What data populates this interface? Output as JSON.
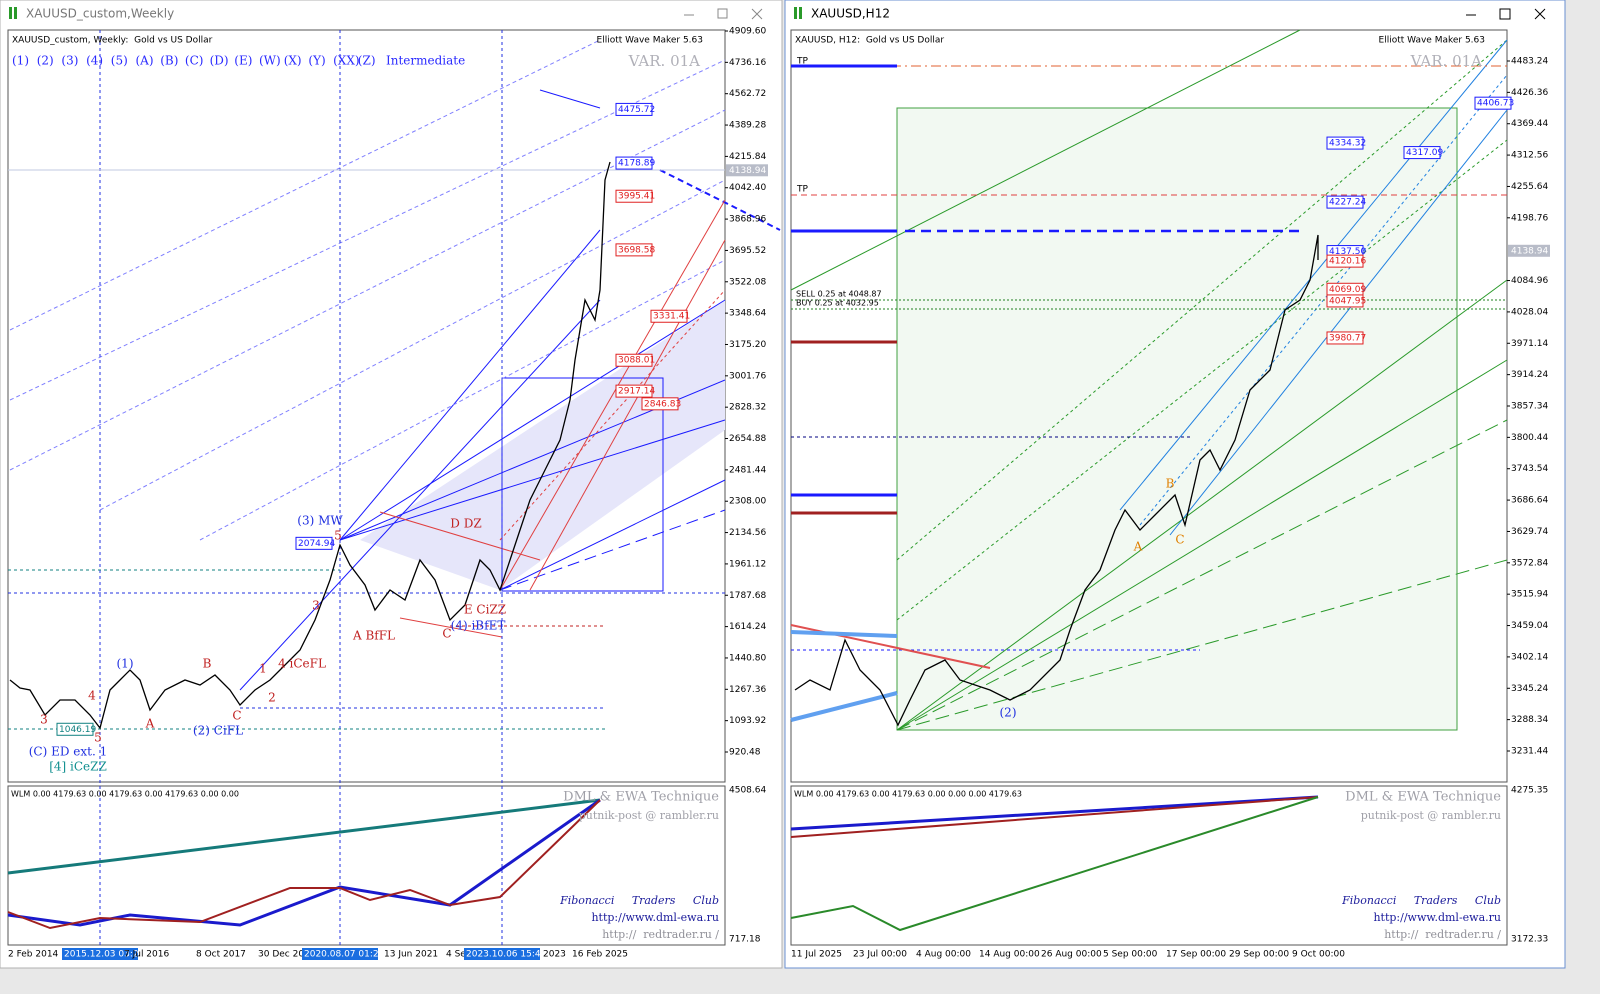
{
  "windows": [
    {
      "title": "XAUUSD_custom,Weekly",
      "chart_header": "XAUUSD_custom, Weekly:  Gold vs US Dollar",
      "indicator": "Elliott Wave Maker 5.63",
      "wave_buttons": [
        "(1)",
        "(2)",
        "(3)",
        "(4)",
        "(5)",
        "(A)",
        "(B)",
        "(C)",
        "(D)",
        "(E)",
        "(W)",
        "(X)",
        "(Y)",
        "(XX)",
        "(Z)"
      ],
      "degree": "Intermediate",
      "variant": "VAR. 01A",
      "price_axis": [
        "4909.60",
        "4736.16",
        "4562.72",
        "4389.28",
        "4215.84",
        "4042.40",
        "3868.96",
        "3695.52",
        "3522.08",
        "3348.64",
        "3175.20",
        "3001.76",
        "2828.32",
        "2654.88",
        "2481.44",
        "2308.00",
        "2134.56",
        "1961.12",
        "1787.68",
        "1614.24",
        "1440.80",
        "1267.36",
        "1093.92",
        "920.48"
      ],
      "current_price": "4138.94",
      "price_boxes": [
        {
          "text": "4475.72",
          "color": "#1a1aff"
        },
        {
          "text": "4178.89",
          "color": "#1a1aff"
        },
        {
          "text": "3995.41",
          "color": "#e02020"
        },
        {
          "text": "3698.58",
          "color": "#e02020"
        },
        {
          "text": "3331.41",
          "color": "#e02020"
        },
        {
          "text": "3088.01",
          "color": "#e02020"
        },
        {
          "text": "2917.14",
          "color": "#e02020"
        },
        {
          "text": "2846.83",
          "color": "#e02020"
        },
        {
          "text": "2074.94",
          "color": "#1a1aff"
        },
        {
          "text": "1046.19",
          "color": "#108080"
        }
      ],
      "annotations": [
        {
          "text": "(3) MW",
          "color": "#2030e0"
        },
        {
          "text": "(1)",
          "color": "#2030e0"
        },
        {
          "text": "(2) CiFL",
          "color": "#2030e0"
        },
        {
          "text": "(C) ED ext. 1",
          "color": "#2030e0"
        },
        {
          "text": "[4] iCeZZ",
          "color": "#108f8f"
        },
        {
          "text": "4 iCeFL",
          "color": "#c02020"
        },
        {
          "text": "A BfFL",
          "color": "#c02020"
        },
        {
          "text": "C",
          "color": "#c02020"
        },
        {
          "text": "D DZ",
          "color": "#c02020"
        },
        {
          "text": "E CiZZ",
          "color": "#c02020"
        },
        {
          "text": "(4) iBfET",
          "color": "#2030e0"
        },
        {
          "text": "B",
          "color": "#c02020"
        },
        {
          "text": "A",
          "color": "#c02020"
        },
        {
          "text": "C",
          "color": "#c02020"
        },
        {
          "text": "1",
          "color": "#c02020"
        },
        {
          "text": "2",
          "color": "#c02020"
        },
        {
          "text": "3",
          "color": "#c02020"
        },
        {
          "text": "4",
          "color": "#c02020"
        },
        {
          "text": "5",
          "color": "#c02020"
        },
        {
          "text": "3",
          "color": "#c02020"
        },
        {
          "text": "5",
          "color": "#c02020"
        }
      ],
      "date_axis": [
        {
          "text": "2 Feb 2014",
          "highlight": false
        },
        {
          "text": "2015.12.03 03:20",
          "highlight": true
        },
        {
          "text": "7 Jul 2016",
          "highlight": false
        },
        {
          "text": "8 Oct 2017",
          "highlight": false
        },
        {
          "text": "30 Dec 20",
          "highlight": false
        },
        {
          "text": "2020.08.07 01:21",
          "highlight": true
        },
        {
          "text": "13 Jun 2021",
          "highlight": false
        },
        {
          "text": "4 Se",
          "highlight": false
        },
        {
          "text": "2023.10.06 15:47",
          "highlight": true
        },
        {
          "text": "2023",
          "highlight": false
        },
        {
          "text": "16 Feb 2025",
          "highlight": false
        }
      ],
      "sub_header": "WLM 0.00 4179.63 0.00 4179.63 0.00 4179.63 0.00 0.00",
      "sub_axis": [
        "4508.64",
        "717.18"
      ],
      "credits": [
        "DML & EWA Technique",
        "putnik-post @ rambler.ru"
      ],
      "links": [
        "Fibonacci     Traders     Club",
        "http://www.dml-ewa.ru",
        "http://  redtrader.ru /"
      ]
    },
    {
      "title": "XAUUSD,H12",
      "chart_header": "XAUUSD, H12:  Gold vs US Dollar",
      "indicator": "Elliott Wave Maker 5.63",
      "variant": "VAR. 01A",
      "price_axis": [
        "4483.24",
        "4426.36",
        "4369.44",
        "4312.56",
        "4255.64",
        "4198.76",
        "4084.96",
        "4028.04",
        "3971.14",
        "3914.24",
        "3857.34",
        "3800.44",
        "3743.54",
        "3686.64",
        "3629.74",
        "3572.84",
        "3515.94",
        "3459.04",
        "3402.14",
        "3345.24",
        "3288.34",
        "3231.44"
      ],
      "current_price": "4138.94",
      "price_boxes": [
        {
          "text": "4406.73",
          "color": "#1a1aff"
        },
        {
          "text": "4334.32",
          "color": "#1a1aff"
        },
        {
          "text": "4317.09",
          "color": "#1a1aff"
        },
        {
          "text": "4227.24",
          "color": "#1a1aff"
        },
        {
          "text": "4137.50",
          "color": "#1a1aff"
        },
        {
          "text": "4120.16",
          "color": "#e02020"
        },
        {
          "text": "4069.09",
          "color": "#e02020"
        },
        {
          "text": "4047.95",
          "color": "#e02020"
        },
        {
          "text": "3980.77",
          "color": "#e02020"
        }
      ],
      "orders": [
        "TP",
        "TP",
        "SELL 0.25 at 4048.87",
        "BUY 0.25 at 4032.95"
      ],
      "annotations": [
        {
          "text": "(2)",
          "color": "#2030e0"
        },
        {
          "text": "A",
          "color": "#e08000"
        },
        {
          "text": "B",
          "color": "#e08000"
        },
        {
          "text": "C",
          "color": "#e08000"
        }
      ],
      "date_axis": [
        {
          "text": "11 Jul 2025",
          "highlight": false
        },
        {
          "text": "23 Jul 00:00",
          "highlight": false
        },
        {
          "text": "4 Aug 00:00",
          "highlight": false
        },
        {
          "text": "14 Aug 00:00",
          "highlight": false
        },
        {
          "text": "26 Aug 00:00",
          "highlight": false
        },
        {
          "text": "5 Sep 00:00",
          "highlight": false
        },
        {
          "text": "17 Sep 00:00",
          "highlight": false
        },
        {
          "text": "29 Sep 00:00",
          "highlight": false
        },
        {
          "text": "9 Oct 00:00",
          "highlight": false
        }
      ],
      "sub_header": "WLM 0.00 4179.63 0.00 4179.63 0.00 0.00 0.00 4179.63",
      "sub_axis": [
        "4275.35",
        "3172.33"
      ],
      "credits": [
        "DML & EWA Technique",
        "putnik-post @ rambler.ru"
      ],
      "links": [
        "Fibonacci     Traders     Club",
        "http://www.dml-ewa.ru",
        "http://  redtrader.ru /"
      ]
    }
  ]
}
